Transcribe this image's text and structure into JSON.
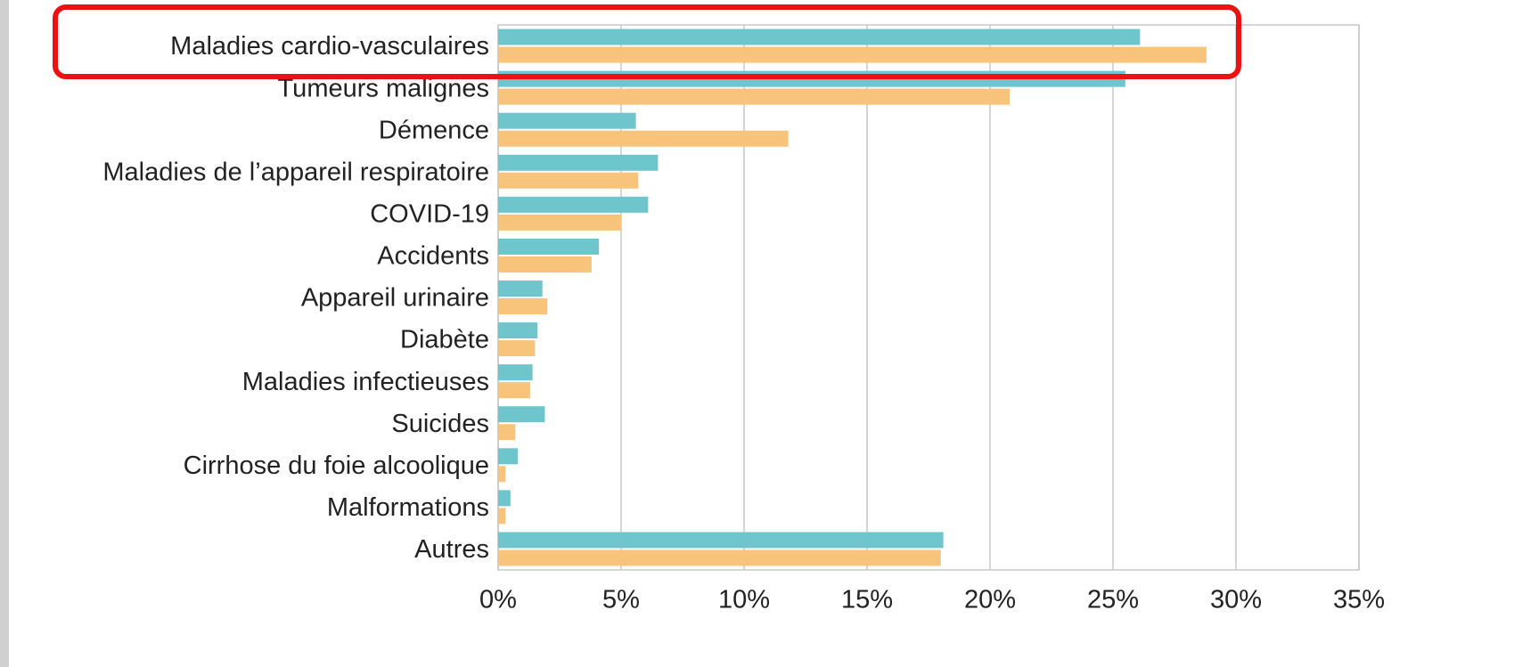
{
  "chart_data": {
    "type": "bar",
    "orientation": "horizontal",
    "categories": [
      "Maladies cardio-vasculaires",
      "Tumeurs malignes",
      "Démence",
      "Maladies de l’appareil respiratoire",
      "COVID-19",
      "Accidents",
      "Appareil urinaire",
      "Diabète",
      "Maladies infectieuses",
      "Suicides",
      "Cirrhose du foie alcoolique",
      "Malformations",
      "Autres"
    ],
    "series": [
      {
        "color": "#6fc5cc",
        "values": [
          26.1,
          25.5,
          5.6,
          6.5,
          6.1,
          4.1,
          1.8,
          1.6,
          1.4,
          1.9,
          0.8,
          0.5,
          18.1
        ]
      },
      {
        "color": "#f8c47c",
        "values": [
          28.8,
          20.8,
          11.8,
          5.7,
          5.0,
          3.8,
          2.0,
          1.5,
          1.3,
          0.7,
          0.3,
          0.3,
          18.0
        ]
      }
    ],
    "xlim": [
      0,
      35
    ],
    "xticks": [
      {
        "value": 0,
        "label": "0%"
      },
      {
        "value": 5,
        "label": "5%"
      },
      {
        "value": 10,
        "label": "10%"
      },
      {
        "value": 15,
        "label": "15%"
      },
      {
        "value": 20,
        "label": "20%"
      },
      {
        "value": 25,
        "label": "25%"
      },
      {
        "value": 30,
        "label": "30%"
      },
      {
        "value": 35,
        "label": "35%"
      }
    ],
    "grid": true
  }
}
